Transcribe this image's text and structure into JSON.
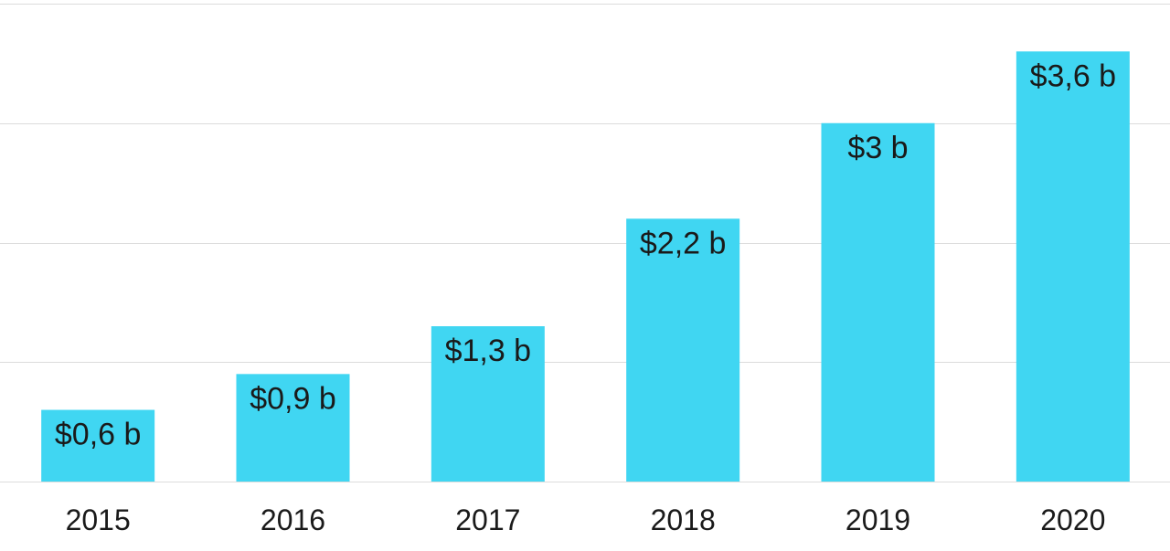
{
  "chart_data": {
    "type": "bar",
    "categories": [
      "2015",
      "2016",
      "2017",
      "2018",
      "2019",
      "2020"
    ],
    "values": [
      0.6,
      0.9,
      1.3,
      2.2,
      3.0,
      3.6
    ],
    "data_labels": [
      "$0,6 b",
      "$0,9 b",
      "$1,3 b",
      "$2,2 b",
      "$3 b",
      "$3,6 b"
    ],
    "ylim": [
      0,
      4
    ],
    "ygrid_step": 1,
    "grid": true,
    "legend": "none",
    "colors": {
      "bar": "#40D6F2",
      "grid": "#dcdcdc",
      "text": "#1a1a1a",
      "background": "#ffffff"
    }
  }
}
